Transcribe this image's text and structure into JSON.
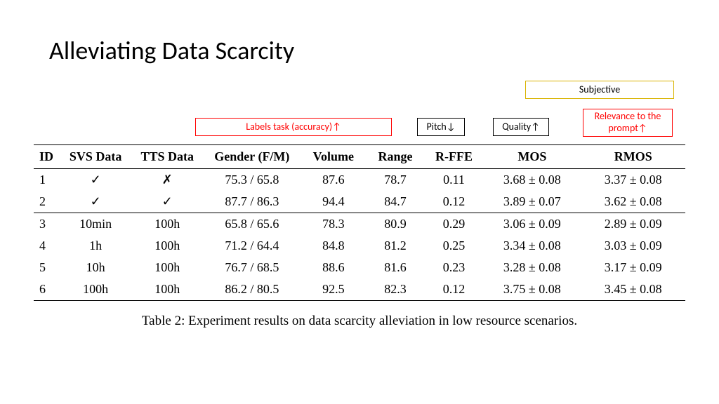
{
  "title": "Alleviating Data Scarcity",
  "annotations": {
    "subjective": "Subjective",
    "labels": "Labels task (accuracy)↑",
    "pitch": "Pitch↓",
    "quality": "Quality↑",
    "relevance": "Relevance to the prompt↑"
  },
  "table": {
    "columns": [
      "ID",
      "SVS Data",
      "TTS Data",
      "Gender (F/M)",
      "Volume",
      "Range",
      "R-FFE",
      "MOS",
      "RMOS"
    ],
    "rows_group1": [
      {
        "id": "1",
        "svs": "✓",
        "tts": "✗",
        "gender": "75.3 / 65.8",
        "volume": "87.6",
        "range": "78.7",
        "rffe": "0.11",
        "mos": "3.68 ± 0.08",
        "rmos": "3.37 ± 0.08"
      },
      {
        "id": "2",
        "svs": "✓",
        "tts": "✓",
        "gender": "87.7 / 86.3",
        "volume": "94.4",
        "range": "84.7",
        "rffe": "0.12",
        "mos": "3.89 ± 0.07",
        "rmos": "3.62 ± 0.08"
      }
    ],
    "rows_group2": [
      {
        "id": "3",
        "svs": "10min",
        "tts": "100h",
        "gender": "65.8 / 65.6",
        "volume": "78.3",
        "range": "80.9",
        "rffe": "0.29",
        "mos": "3.06 ± 0.09",
        "rmos": "2.89 ± 0.09"
      },
      {
        "id": "4",
        "svs": "1h",
        "tts": "100h",
        "gender": "71.2 / 64.4",
        "volume": "84.8",
        "range": "81.2",
        "rffe": "0.25",
        "mos": "3.34 ± 0.08",
        "rmos": "3.03 ± 0.09"
      },
      {
        "id": "5",
        "svs": "10h",
        "tts": "100h",
        "gender": "76.7 / 68.5",
        "volume": "88.6",
        "range": "81.6",
        "rffe": "0.23",
        "mos": "3.28 ± 0.08",
        "rmos": "3.17 ± 0.09"
      },
      {
        "id": "6",
        "svs": "100h",
        "tts": "100h",
        "gender": "86.2 / 80.5",
        "volume": "92.5",
        "range": "82.3",
        "rffe": "0.12",
        "mos": "3.75 ± 0.08",
        "rmos": "3.45 ± 0.08"
      }
    ],
    "caption": "Table 2: Experiment results on data scarcity alleviation in low resource scenarios."
  },
  "styling": {
    "title_fontsize": 36,
    "table_fontsize": 18,
    "caption_fontsize": 19,
    "annotation_fontsize": 14,
    "background_color": "#ffffff",
    "text_color": "#000000",
    "border_red": "#ff0000",
    "border_black": "#000000",
    "border_yellow": "#d9b300",
    "table_rule_color": "#000000"
  }
}
